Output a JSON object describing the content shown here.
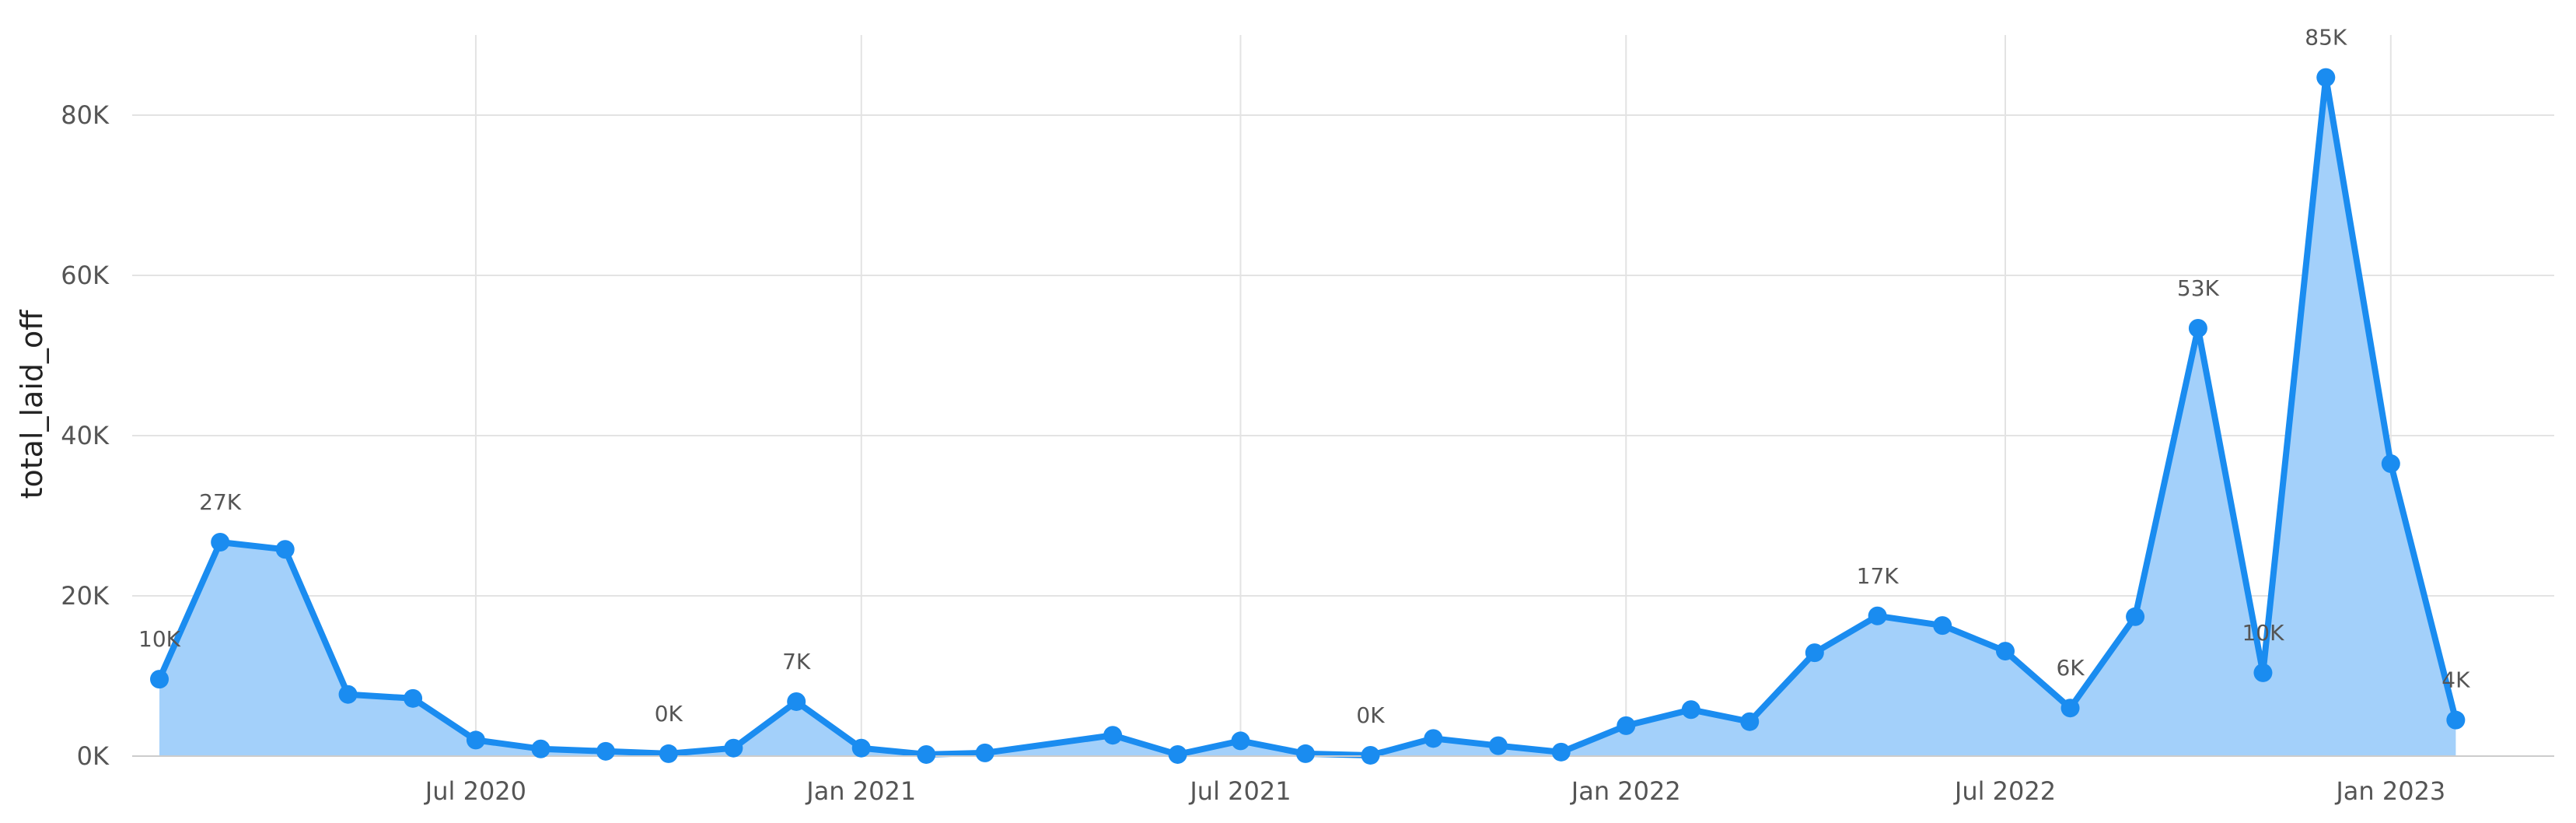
{
  "chart_data": {
    "type": "area",
    "ylabel": "total_laid_off",
    "xlabel": "",
    "x_axis": "date",
    "xlim": [
      "2020-01-19",
      "2023-03-20"
    ],
    "ylim": [
      0,
      90000
    ],
    "grid": true,
    "x_ticks": [
      {
        "date": "2020-07-01",
        "label": "Jul 2020"
      },
      {
        "date": "2021-01-01",
        "label": "Jan 2021"
      },
      {
        "date": "2021-07-01",
        "label": "Jul 2021"
      },
      {
        "date": "2022-01-01",
        "label": "Jan 2022"
      },
      {
        "date": "2022-07-01",
        "label": "Jul 2022"
      },
      {
        "date": "2023-01-01",
        "label": "Jan 2023"
      }
    ],
    "y_ticks": [
      {
        "value": 0,
        "label": "0K"
      },
      {
        "value": 20000,
        "label": "20K"
      },
      {
        "value": 40000,
        "label": "40K"
      },
      {
        "value": 60000,
        "label": "60K"
      },
      {
        "value": 80000,
        "label": "80K"
      }
    ],
    "colors": {
      "line": "#1a8cf0",
      "fill": "#a3d0fa",
      "grid": "#e3e3e3"
    },
    "points": [
      {
        "x": "2020-02-01",
        "y": 9600,
        "label": "10K"
      },
      {
        "x": "2020-03-01",
        "y": 26700,
        "label": "27K"
      },
      {
        "x": "2020-04-01",
        "y": 25800,
        "label": ""
      },
      {
        "x": "2020-05-01",
        "y": 7700,
        "label": ""
      },
      {
        "x": "2020-06-01",
        "y": 7200,
        "label": ""
      },
      {
        "x": "2020-07-01",
        "y": 2000,
        "label": ""
      },
      {
        "x": "2020-08-01",
        "y": 900,
        "label": ""
      },
      {
        "x": "2020-09-01",
        "y": 600,
        "label": ""
      },
      {
        "x": "2020-10-01",
        "y": 300,
        "label": "0K"
      },
      {
        "x": "2020-11-01",
        "y": 1000,
        "label": ""
      },
      {
        "x": "2020-12-01",
        "y": 6800,
        "label": "7K"
      },
      {
        "x": "2021-01-01",
        "y": 1000,
        "label": ""
      },
      {
        "x": "2021-02-01",
        "y": 200,
        "label": ""
      },
      {
        "x": "2021-03-01",
        "y": 400,
        "label": ""
      },
      {
        "x": "2021-05-01",
        "y": 2600,
        "label": ""
      },
      {
        "x": "2021-06-01",
        "y": 200,
        "label": ""
      },
      {
        "x": "2021-07-01",
        "y": 1900,
        "label": ""
      },
      {
        "x": "2021-08-01",
        "y": 300,
        "label": ""
      },
      {
        "x": "2021-09-01",
        "y": 100,
        "label": "0K"
      },
      {
        "x": "2021-10-01",
        "y": 2200,
        "label": ""
      },
      {
        "x": "2021-11-01",
        "y": 1300,
        "label": ""
      },
      {
        "x": "2021-12-01",
        "y": 500,
        "label": ""
      },
      {
        "x": "2022-01-01",
        "y": 3800,
        "label": ""
      },
      {
        "x": "2022-02-01",
        "y": 5800,
        "label": ""
      },
      {
        "x": "2022-03-01",
        "y": 4300,
        "label": ""
      },
      {
        "x": "2022-04-01",
        "y": 12900,
        "label": ""
      },
      {
        "x": "2022-05-01",
        "y": 17500,
        "label": "17K"
      },
      {
        "x": "2022-06-01",
        "y": 16300,
        "label": ""
      },
      {
        "x": "2022-07-01",
        "y": 13100,
        "label": ""
      },
      {
        "x": "2022-08-01",
        "y": 6000,
        "label": "6K"
      },
      {
        "x": "2022-09-01",
        "y": 17400,
        "label": ""
      },
      {
        "x": "2022-10-01",
        "y": 53400,
        "label": "53K"
      },
      {
        "x": "2022-11-01",
        "y": 10400,
        "label": "10K"
      },
      {
        "x": "2022-12-01",
        "y": 84700,
        "label": "85K"
      },
      {
        "x": "2023-01-01",
        "y": 36500,
        "label": ""
      },
      {
        "x": "2023-02-01",
        "y": 4500,
        "label": "4K"
      }
    ]
  }
}
